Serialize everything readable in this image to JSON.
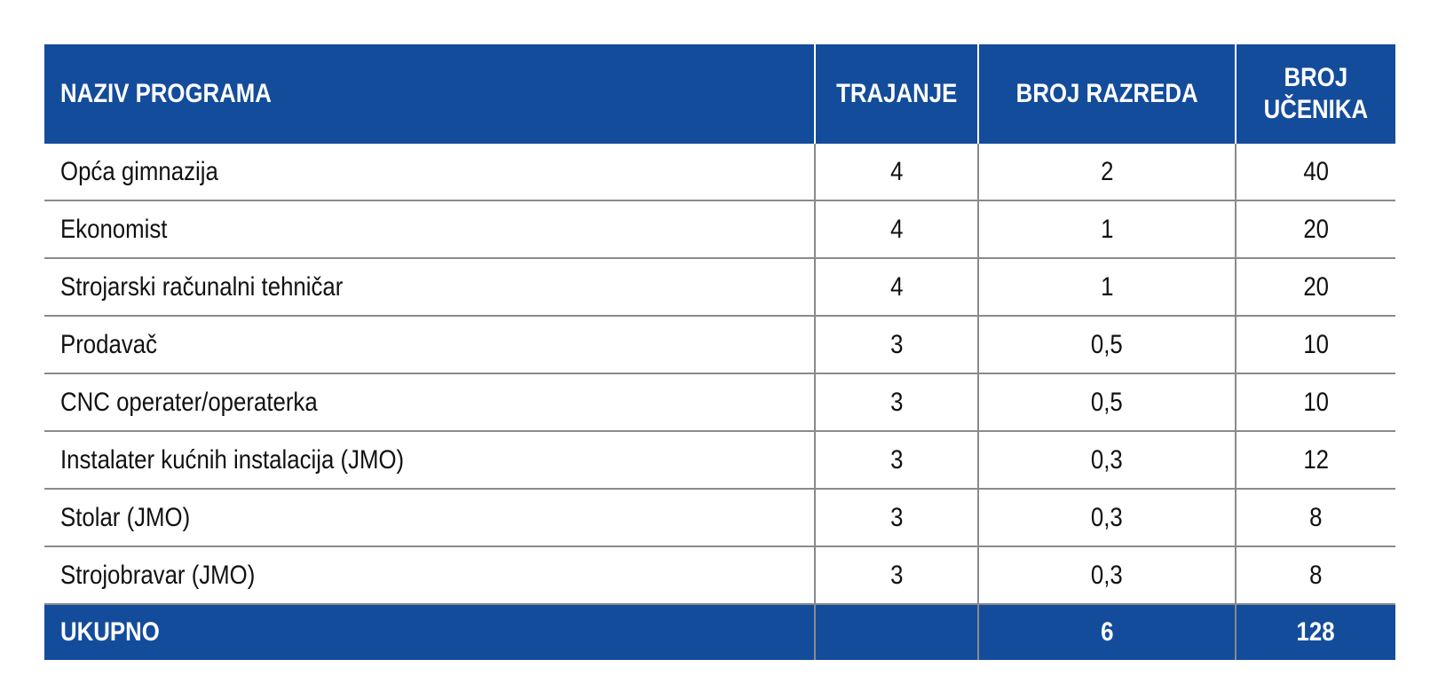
{
  "table": {
    "headers": [
      "NAZIV PROGRAMA",
      "TRAJANJE",
      "BROJ RAZREDA",
      "BROJ UČENIKA"
    ],
    "header_broj_ucenika_lines": [
      "BROJ",
      "UČENIKA"
    ],
    "rows": [
      [
        "Opća gimnazija",
        "4",
        "2",
        "40"
      ],
      [
        "Ekonomist",
        "4",
        "1",
        "20"
      ],
      [
        "Strojarski računalni tehničar",
        "4",
        "1",
        "20"
      ],
      [
        "Prodavač",
        "3",
        "0,5",
        "10"
      ],
      [
        "CNC operater/operaterka",
        "3",
        "0,5",
        "10"
      ],
      [
        "Instalater kućnih instalacija (JMO)",
        "3",
        "0,3",
        "12"
      ],
      [
        "Stolar (JMO)",
        "3",
        "0,3",
        "8"
      ],
      [
        "Strojobravar (JMO)",
        "3",
        "0,3",
        "8"
      ]
    ],
    "total": [
      "UKUPNO",
      "",
      "6",
      "128"
    ]
  },
  "colors": {
    "header_bg": "#144c9c",
    "header_text": "#ffffff",
    "grid": "#8a8a8a"
  }
}
